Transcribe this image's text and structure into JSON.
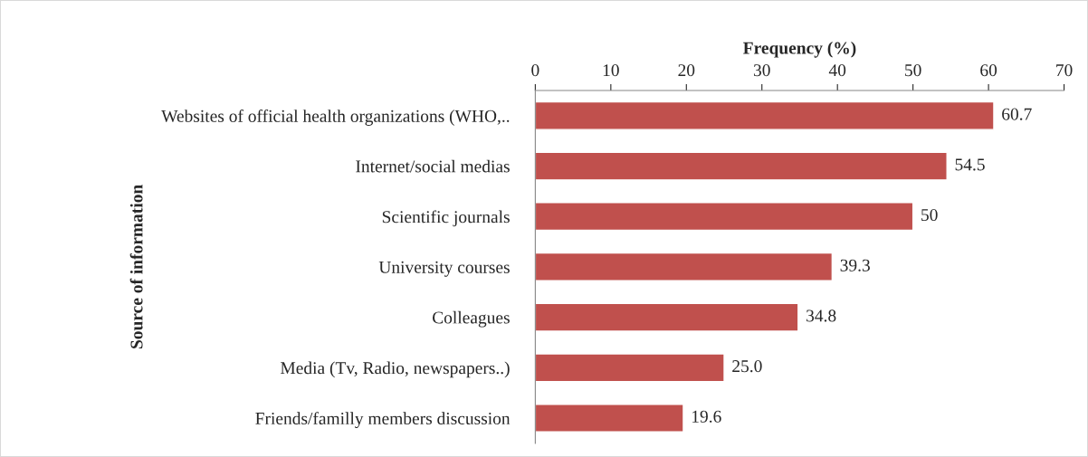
{
  "chart_data": {
    "type": "bar",
    "orientation": "horizontal",
    "xlabel": "Frequency (%)",
    "ylabel": "Source of information",
    "categories": [
      "Websites of official health organizations (WHO,..",
      "Internet/social medias",
      "Scientific journals",
      "University courses",
      "Colleagues",
      "Media (Tv, Radio, newspapers..)",
      "Friends/familly members discussion"
    ],
    "values": [
      60.7,
      54.5,
      50,
      39.3,
      34.8,
      25.0,
      19.6
    ],
    "value_labels": [
      "60.7",
      "54.5",
      "50",
      "39.3",
      "34.8",
      "25.0",
      "19.6"
    ],
    "color": "#c0504d",
    "xlim": [
      0,
      70
    ],
    "xticks": [
      0,
      10,
      20,
      30,
      40,
      50,
      60,
      70
    ],
    "grid": false,
    "legend": false
  }
}
